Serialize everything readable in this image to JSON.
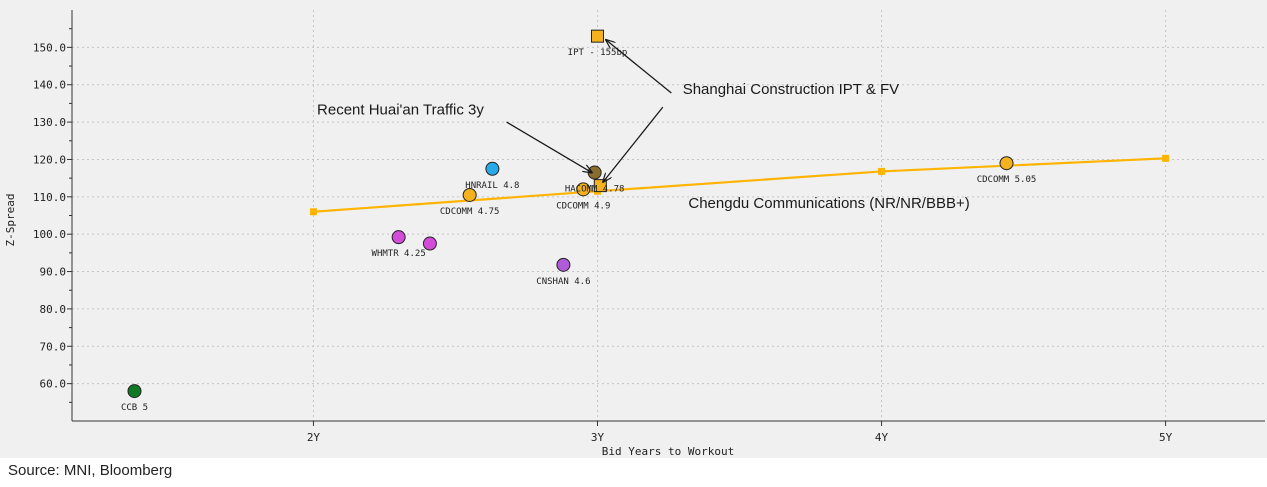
{
  "source": "Source: MNI, Bloomberg",
  "colors": {
    "background": "#f0f0f0",
    "curve": "#ffb400",
    "orange": "#f5b21e",
    "blue": "#2aa9e8",
    "magenta": "#d24bd9",
    "purple": "#b05bd8",
    "green": "#0f7a23",
    "brown": "#8a6d2c"
  },
  "chart_data": {
    "type": "scatter",
    "title": "",
    "xlabel": "Bid Years to Workout",
    "ylabel": "Z-Spread",
    "xlim": [
      1.15,
      5.35
    ],
    "ylim": [
      50,
      160
    ],
    "x_ticks": [
      {
        "value": 2,
        "label": "2Y"
      },
      {
        "value": 3,
        "label": "3Y"
      },
      {
        "value": 4,
        "label": "4Y"
      },
      {
        "value": 5,
        "label": "5Y"
      }
    ],
    "y_ticks": [
      {
        "value": 60,
        "label": "60.0"
      },
      {
        "value": 70,
        "label": "70.0"
      },
      {
        "value": 80,
        "label": "80.0"
      },
      {
        "value": 90,
        "label": "90.0"
      },
      {
        "value": 100,
        "label": "100.0"
      },
      {
        "value": 110,
        "label": "110.0"
      },
      {
        "value": 120,
        "label": "120.0"
      },
      {
        "value": 130,
        "label": "130.0"
      },
      {
        "value": 140,
        "label": "140.0"
      },
      {
        "value": 150,
        "label": "150.0"
      }
    ],
    "curve": {
      "name": "Chengdu Communications curve",
      "x": [
        2.0,
        3.0,
        4.0,
        5.0
      ],
      "y": [
        106,
        111.5,
        116.8,
        120.3
      ]
    },
    "points": [
      {
        "name": "CCB 5",
        "label": "CCB 5",
        "x": 1.37,
        "y": 58,
        "color": "green",
        "shape": "circle",
        "label_pos": "below"
      },
      {
        "name": "WHMTR 4.25 a",
        "label": "WHMTR 4.25",
        "x": 2.3,
        "y": 99.2,
        "color": "magenta",
        "shape": "circle",
        "label_pos": "below"
      },
      {
        "name": "WHMTR 4.25 b",
        "label": "",
        "x": 2.41,
        "y": 97.5,
        "color": "magenta",
        "shape": "circle",
        "label_pos": "none"
      },
      {
        "name": "CDCOMM 4.75",
        "label": "CDCOMM 4.75",
        "x": 2.55,
        "y": 110.5,
        "color": "orange",
        "shape": "circle",
        "label_pos": "below"
      },
      {
        "name": "HNRAIL 4.8",
        "label": "HNRAIL 4.8",
        "x": 2.63,
        "y": 117.5,
        "color": "blue",
        "shape": "circle",
        "label_pos": "below"
      },
      {
        "name": "CNSHAN 4.6",
        "label": "CNSHAN 4.6",
        "x": 2.88,
        "y": 91.8,
        "color": "purple",
        "shape": "circle",
        "label_pos": "below"
      },
      {
        "name": "HACOMM 4.78",
        "label": "HACOMM 4.78",
        "x": 2.99,
        "y": 116.5,
        "color": "brown",
        "shape": "circle",
        "label_pos": "below"
      },
      {
        "name": "CDCOMM 4.9",
        "label": "CDCOMM 4.9",
        "x": 2.95,
        "y": 112,
        "color": "orange",
        "shape": "circle",
        "label_pos": "below"
      },
      {
        "name": "CDCOMM 5.05",
        "label": "CDCOMM 5.05",
        "x": 4.44,
        "y": 119,
        "color": "orange",
        "shape": "circle",
        "label_pos": "below"
      },
      {
        "name": "IPT",
        "label": "IPT - 155bp",
        "x": 3.0,
        "y": 153,
        "color": "orange",
        "shape": "square",
        "label_pos": "below"
      },
      {
        "name": "FV",
        "label": "",
        "x": 3.01,
        "y": 113,
        "color": "orange",
        "shape": "square",
        "label_pos": "none"
      }
    ],
    "annotations": [
      {
        "text": "Recent Huai'an Traffic 3y",
        "text_x": 2.6,
        "text_y": 132,
        "anchor": "end",
        "arrows": [
          {
            "from_x": 2.68,
            "from_y": 130,
            "to_x": 2.98,
            "to_y": 116.5
          }
        ]
      },
      {
        "text": "Shanghai Construction IPT & FV",
        "text_x": 3.3,
        "text_y": 137.5,
        "anchor": "start",
        "arrows": [
          {
            "from_x": 3.26,
            "from_y": 137.8,
            "to_x": 3.03,
            "to_y": 152
          },
          {
            "from_x": 3.23,
            "from_y": 134,
            "to_x": 3.02,
            "to_y": 114
          }
        ]
      },
      {
        "text": "Chengdu Communications (NR/NR/BBB+)",
        "text_x": 3.32,
        "text_y": 107,
        "anchor": "start",
        "arrows": []
      }
    ]
  }
}
